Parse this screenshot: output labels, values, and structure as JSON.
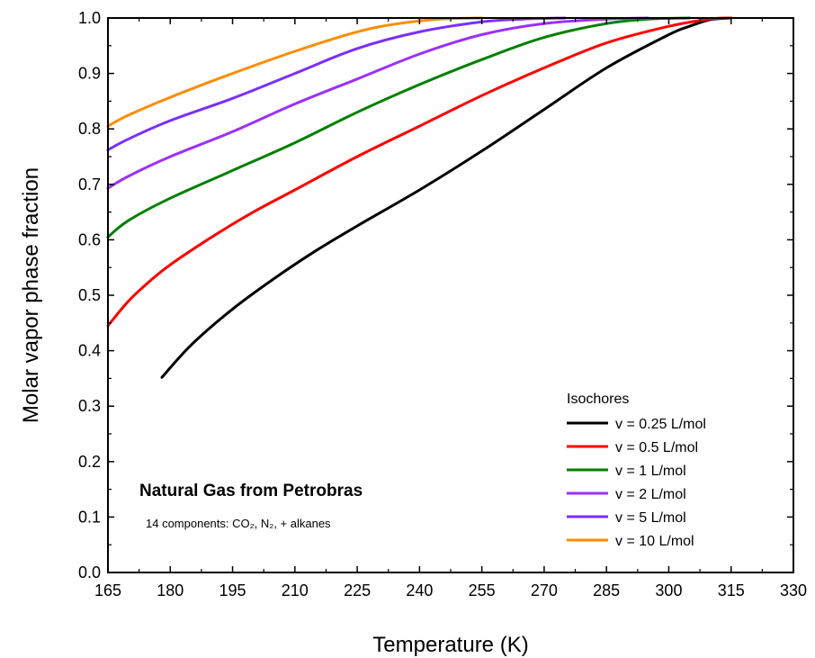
{
  "chart_data": {
    "type": "line",
    "xlabel": "Temperature (K)",
    "ylabel": "Molar vapor phase fraction",
    "xlim": [
      165,
      330
    ],
    "ylim": [
      0.0,
      1.0
    ],
    "xticks": [
      "165",
      "180",
      "195",
      "210",
      "225",
      "240",
      "255",
      "270",
      "285",
      "300",
      "315",
      "330"
    ],
    "yticks": [
      "0.0",
      "0.1",
      "0.2",
      "0.3",
      "0.4",
      "0.5",
      "0.6",
      "0.7",
      "0.8",
      "0.9",
      "1.0"
    ],
    "grid": false,
    "legend": {
      "title": "Isochores",
      "placement": "bottom-right"
    },
    "annotation": {
      "title": "Natural Gas from Petrobras",
      "subtitle": "14 components: CO₂, N₂, + alkanes"
    },
    "series": [
      {
        "name": "v = 0.25 L/mol",
        "color": "#000000",
        "points": [
          [
            178,
            0.352
          ],
          [
            185,
            0.41
          ],
          [
            195,
            0.475
          ],
          [
            205,
            0.53
          ],
          [
            215,
            0.58
          ],
          [
            225,
            0.625
          ],
          [
            240,
            0.69
          ],
          [
            255,
            0.76
          ],
          [
            270,
            0.835
          ],
          [
            285,
            0.91
          ],
          [
            300,
            0.97
          ],
          [
            305,
            0.985
          ],
          [
            310,
            0.997
          ],
          [
            315,
            1.0
          ]
        ]
      },
      {
        "name": "v = 0.5 L/mol",
        "color": "#ff0000",
        "points": [
          [
            165,
            0.445
          ],
          [
            170,
            0.49
          ],
          [
            175,
            0.525
          ],
          [
            180,
            0.555
          ],
          [
            190,
            0.605
          ],
          [
            200,
            0.65
          ],
          [
            210,
            0.69
          ],
          [
            225,
            0.75
          ],
          [
            240,
            0.805
          ],
          [
            255,
            0.86
          ],
          [
            270,
            0.91
          ],
          [
            285,
            0.955
          ],
          [
            300,
            0.985
          ],
          [
            310,
            0.998
          ],
          [
            315,
            1.0
          ]
        ]
      },
      {
        "name": "v = 1 L/mol",
        "color": "#008000",
        "points": [
          [
            165,
            0.605
          ],
          [
            170,
            0.635
          ],
          [
            180,
            0.675
          ],
          [
            195,
            0.725
          ],
          [
            210,
            0.775
          ],
          [
            225,
            0.83
          ],
          [
            240,
            0.88
          ],
          [
            255,
            0.925
          ],
          [
            270,
            0.965
          ],
          [
            285,
            0.99
          ],
          [
            295,
            0.998
          ],
          [
            305,
            1.0
          ]
        ]
      },
      {
        "name": "v = 2 L/mol",
        "color": "#9b30ff",
        "points": [
          [
            165,
            0.693
          ],
          [
            170,
            0.715
          ],
          [
            180,
            0.75
          ],
          [
            195,
            0.795
          ],
          [
            210,
            0.845
          ],
          [
            225,
            0.89
          ],
          [
            240,
            0.935
          ],
          [
            255,
            0.97
          ],
          [
            270,
            0.99
          ],
          [
            285,
            0.998
          ],
          [
            295,
            1.0
          ]
        ]
      },
      {
        "name": "v = 5 L/mol",
        "color": "#7b2fff",
        "points": [
          [
            165,
            0.762
          ],
          [
            170,
            0.782
          ],
          [
            180,
            0.815
          ],
          [
            195,
            0.855
          ],
          [
            210,
            0.9
          ],
          [
            225,
            0.945
          ],
          [
            240,
            0.975
          ],
          [
            255,
            0.993
          ],
          [
            265,
            0.998
          ],
          [
            275,
            1.0
          ]
        ]
      },
      {
        "name": "v = 10 L/mol",
        "color": "#ff8c00",
        "points": [
          [
            165,
            0.805
          ],
          [
            170,
            0.825
          ],
          [
            180,
            0.857
          ],
          [
            195,
            0.9
          ],
          [
            210,
            0.94
          ],
          [
            225,
            0.975
          ],
          [
            235,
            0.99
          ],
          [
            245,
            0.998
          ],
          [
            255,
            1.0
          ]
        ]
      }
    ]
  }
}
